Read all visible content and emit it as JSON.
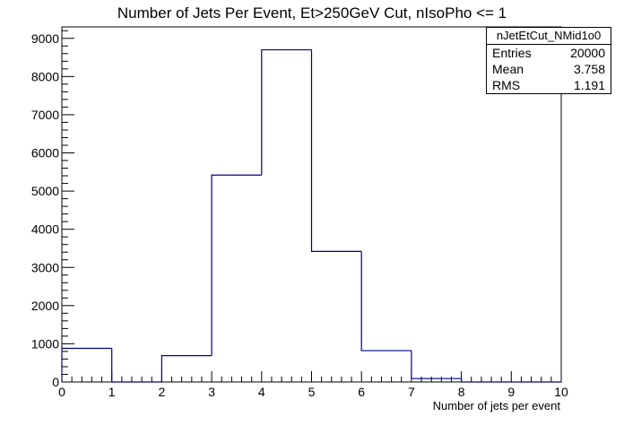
{
  "chart_data": {
    "type": "bar",
    "title": "Number of Jets Per Event, Et>250GeV Cut, nIsoPho <= 1",
    "xlabel": "Number of jets per event",
    "ylabel": "",
    "bin_edges": [
      0,
      1,
      2,
      3,
      4,
      5,
      6,
      7,
      8,
      9,
      10
    ],
    "values": [
      880,
      0,
      690,
      5420,
      8700,
      3420,
      820,
      90,
      0,
      0
    ],
    "xlim": [
      0,
      10
    ],
    "ylim": [
      0,
      9300
    ],
    "x_ticks": [
      "0",
      "1",
      "2",
      "3",
      "4",
      "5",
      "6",
      "7",
      "8",
      "9",
      "10"
    ],
    "y_ticks": [
      "0",
      "1000",
      "2000",
      "3000",
      "4000",
      "5000",
      "6000",
      "7000",
      "8000",
      "9000"
    ],
    "line_color": "#000080",
    "grid": false,
    "stats_box": {
      "name": "nJetEtCut_NMid1o0",
      "entries_label": "Entries",
      "entries_value": "20000",
      "mean_label": "Mean",
      "mean_value": "3.758",
      "rms_label": "RMS",
      "rms_value": "1.191",
      "position": "top-right"
    }
  }
}
